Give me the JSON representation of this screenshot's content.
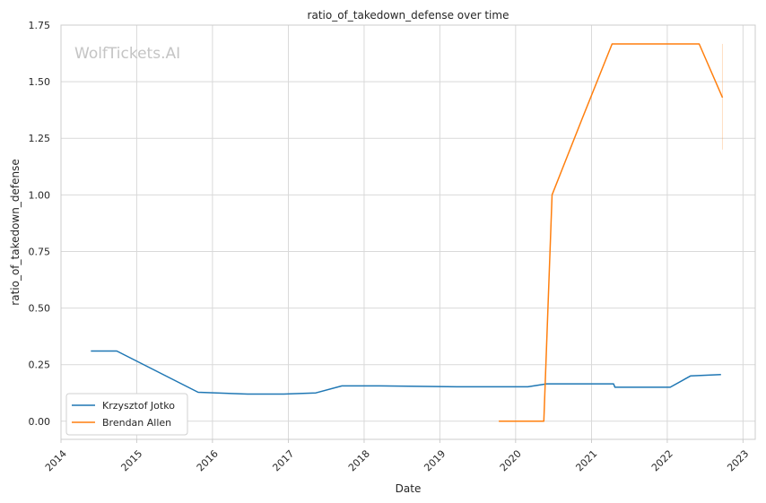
{
  "chart_data": {
    "type": "line",
    "title": "ratio_of_takedown_defense over time",
    "xlabel": "Date",
    "ylabel": "ratio_of_takedown_defense",
    "watermark": "WolfTickets.AI",
    "xlim": [
      "2014-01-01",
      "2023-03-01"
    ],
    "ylim": [
      -0.08,
      1.75
    ],
    "x_ticks": [
      "2014",
      "2015",
      "2016",
      "2017",
      "2018",
      "2019",
      "2020",
      "2021",
      "2022",
      "2023"
    ],
    "y_ticks": [
      "0.00",
      "0.25",
      "0.50",
      "0.75",
      "1.00",
      "1.25",
      "1.50",
      "1.75"
    ],
    "grid": true,
    "legend_position": "lower-left",
    "series": [
      {
        "name": "Krzysztof Jotko",
        "color": "#1f77b4",
        "x": [
          "2014-05-25",
          "2014-09-27",
          "2015-10-24",
          "2016-06-18",
          "2016-12-10",
          "2017-05-13",
          "2017-09-16",
          "2018-03-17",
          "2019-04-20",
          "2020-02-29",
          "2020-05-30",
          "2021-04-17",
          "2021-04-24",
          "2022-01-15",
          "2022-04-23",
          "2022-09-17"
        ],
        "y": [
          0.31,
          0.31,
          0.128,
          0.12,
          0.12,
          0.125,
          0.156,
          0.156,
          0.152,
          0.152,
          0.165,
          0.165,
          0.15,
          0.15,
          0.2,
          0.206
        ]
      },
      {
        "name": "Brendan Allen",
        "color": "#ff7f0e",
        "x": [
          "2019-10-12",
          "2020-05-16",
          "2020-06-25",
          "2020-11-14",
          "2021-04-10",
          "2022-06-04",
          "2022-09-24"
        ],
        "y": [
          0.0,
          0.0,
          1.0,
          1.33,
          1.667,
          1.667,
          1.43
        ]
      }
    ]
  }
}
